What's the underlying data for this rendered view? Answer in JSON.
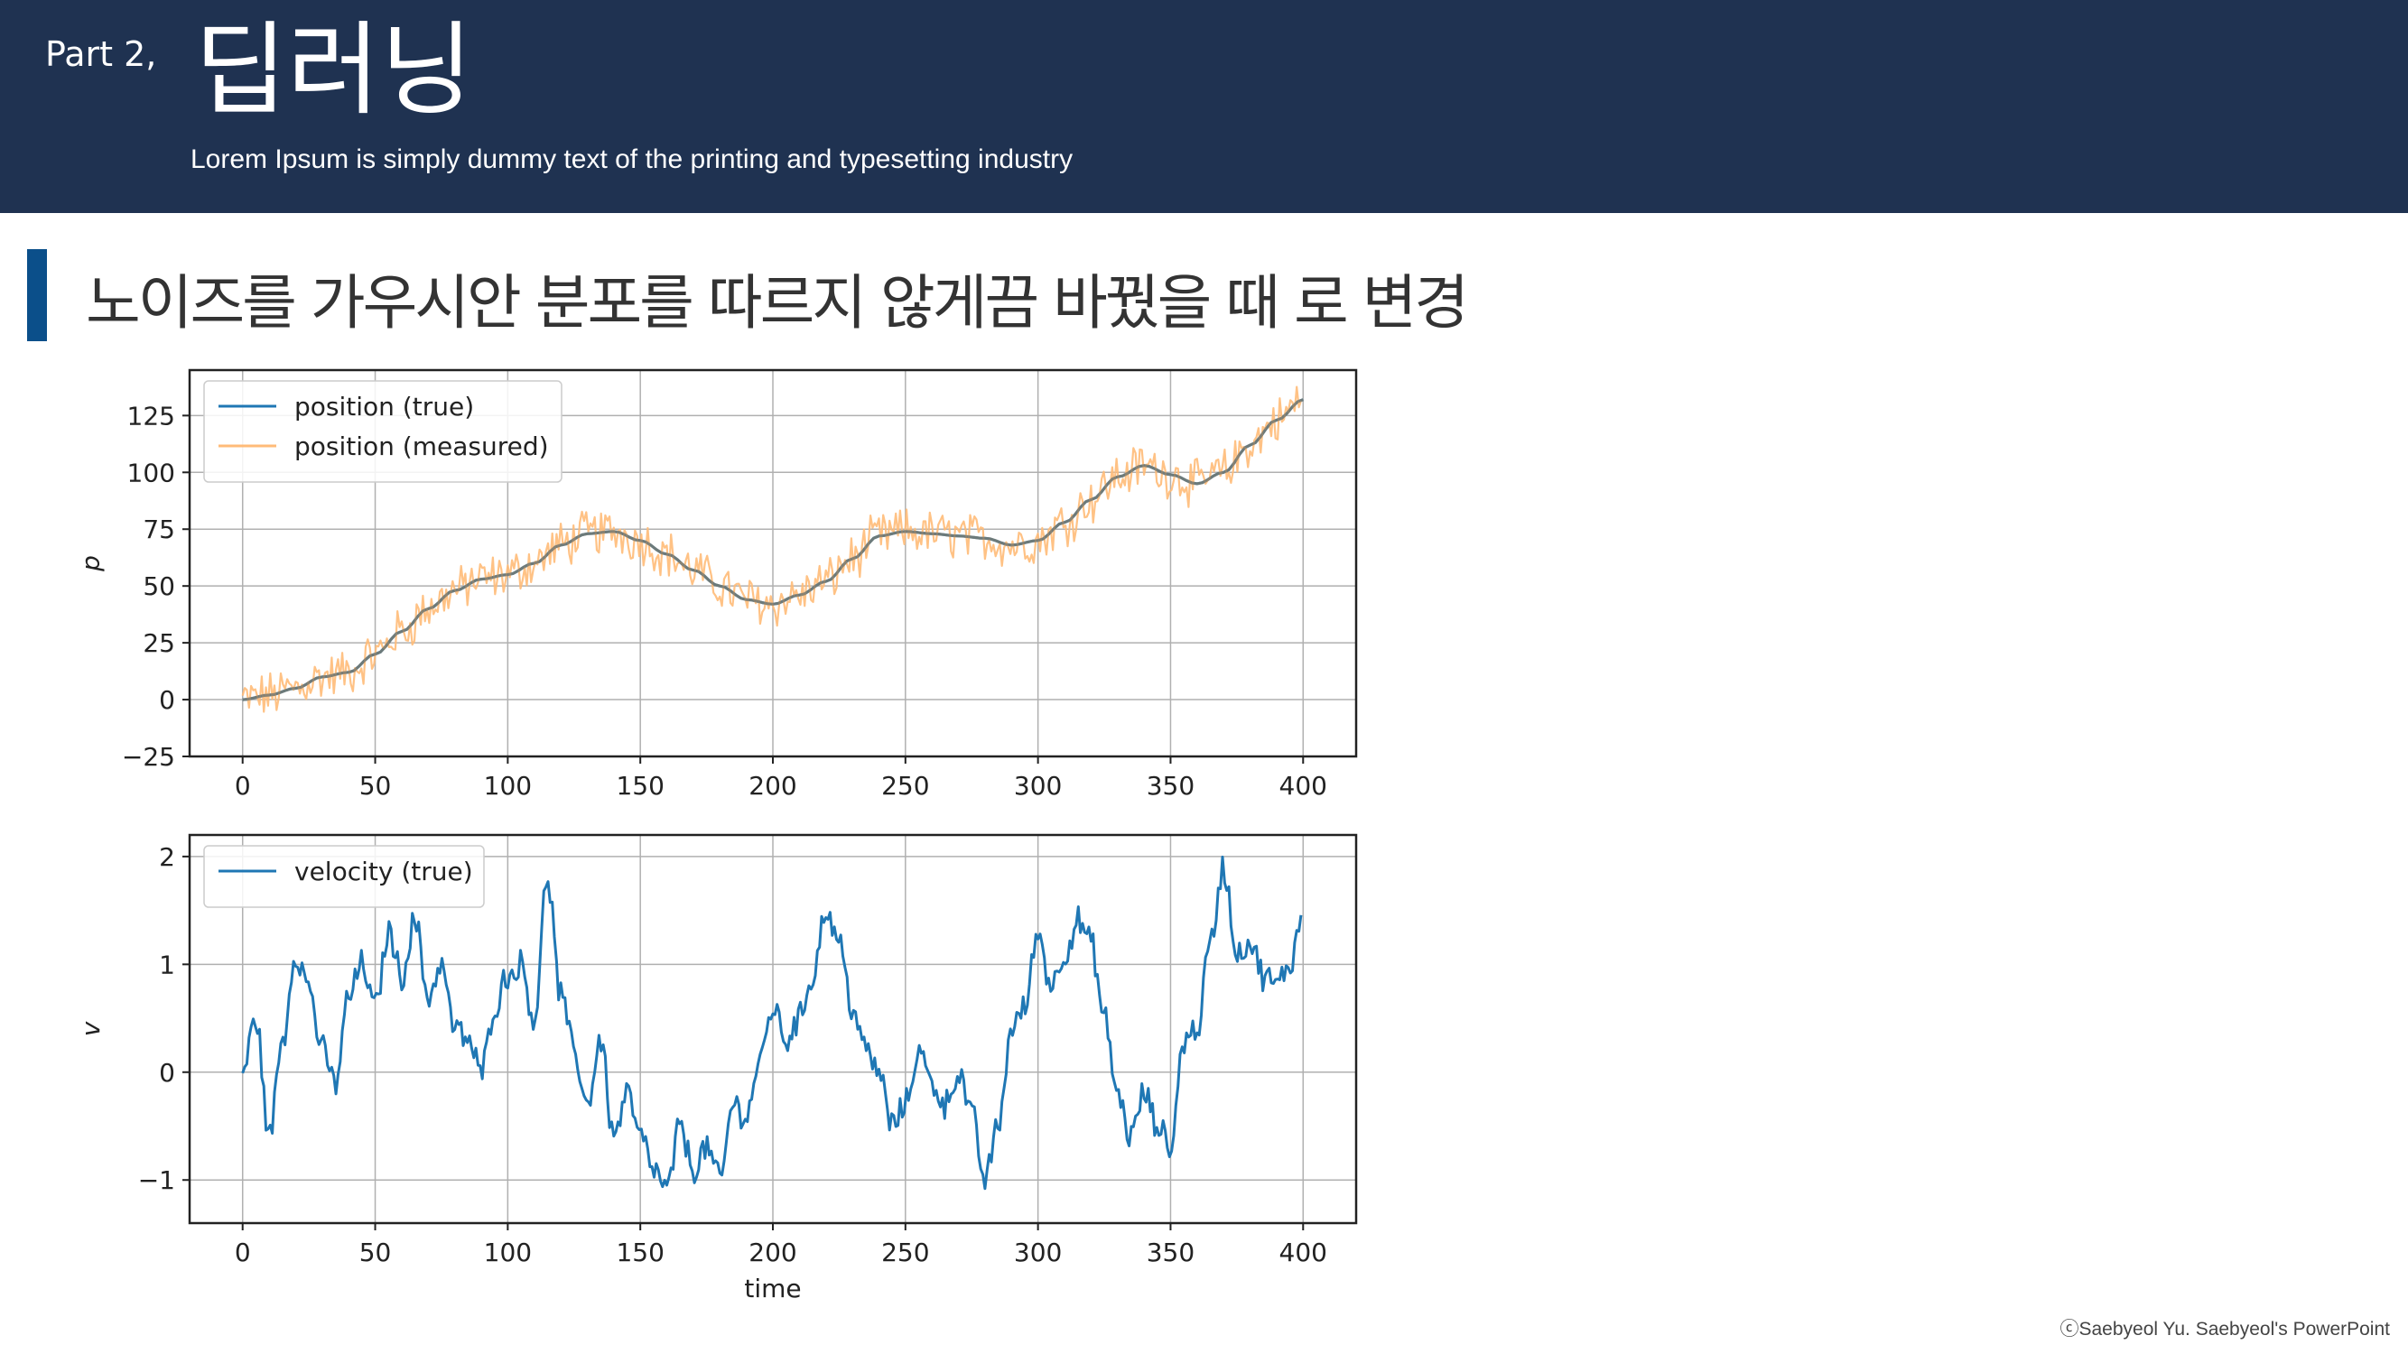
{
  "header": {
    "part_label": "Part 2,",
    "title": "딥러닝",
    "subtitle": "Lorem Ipsum is simply dummy text of the printing and typesetting industry"
  },
  "section": {
    "title": "노이즈를 가우시안 분포를 따르지 않게끔 바꿨을 때 로 변경"
  },
  "footer": {
    "credit": "ⓒSaebyeol Yu. Saebyeol's PowerPoint"
  },
  "colors": {
    "header_bg": "#1f3251",
    "accent_bar": "#0b4f8a",
    "series_true": "#1f77b4",
    "series_measured": "#ffbb78"
  },
  "chart_data": [
    {
      "type": "line",
      "ylabel": "p",
      "xlabel": "",
      "xlim": [
        -20,
        420
      ],
      "ylim": [
        -25,
        145
      ],
      "xticks": [
        0,
        50,
        100,
        150,
        200,
        250,
        300,
        350,
        400
      ],
      "yticks": [
        -25,
        0,
        25,
        50,
        75,
        100,
        125
      ],
      "ytick_labels": [
        "−25",
        "0",
        "25",
        "50",
        "75",
        "100",
        "125"
      ],
      "grid": true,
      "legend_position": "top-left",
      "series": [
        {
          "name": "position (true)",
          "color": "#1f77b4",
          "x": [
            0,
            10,
            20,
            30,
            40,
            50,
            60,
            70,
            80,
            90,
            100,
            110,
            120,
            130,
            140,
            150,
            160,
            170,
            180,
            190,
            200,
            210,
            220,
            230,
            240,
            250,
            260,
            270,
            280,
            290,
            300,
            310,
            320,
            330,
            340,
            350,
            360,
            370,
            380,
            390,
            400
          ],
          "values": [
            0,
            2,
            5,
            10,
            12,
            20,
            30,
            40,
            48,
            53,
            55,
            60,
            68,
            73,
            74,
            70,
            64,
            57,
            50,
            44,
            42,
            46,
            52,
            62,
            72,
            74,
            73,
            72,
            71,
            68,
            70,
            78,
            88,
            98,
            103,
            99,
            95,
            100,
            112,
            123,
            132
          ]
        },
        {
          "name": "position (measured)",
          "color": "#ffbb78",
          "noise_amplitude": 9,
          "x": [
            0,
            10,
            20,
            30,
            40,
            50,
            60,
            70,
            80,
            90,
            100,
            110,
            120,
            130,
            140,
            150,
            160,
            170,
            180,
            190,
            200,
            210,
            220,
            230,
            240,
            250,
            260,
            270,
            280,
            290,
            300,
            310,
            320,
            330,
            340,
            350,
            360,
            370,
            380,
            390,
            400
          ],
          "values": [
            0,
            2,
            5,
            10,
            12,
            20,
            30,
            40,
            48,
            53,
            55,
            60,
            68,
            73,
            74,
            70,
            64,
            57,
            50,
            44,
            42,
            46,
            52,
            62,
            72,
            74,
            73,
            72,
            71,
            68,
            70,
            78,
            88,
            98,
            103,
            99,
            95,
            100,
            112,
            123,
            132
          ]
        }
      ]
    },
    {
      "type": "line",
      "ylabel": "v",
      "xlabel": "time",
      "xlim": [
        -20,
        420
      ],
      "ylim": [
        -1.4,
        2.2
      ],
      "xticks": [
        0,
        50,
        100,
        150,
        200,
        250,
        300,
        350,
        400
      ],
      "yticks": [
        -1,
        0,
        1,
        2
      ],
      "ytick_labels": [
        "−1",
        "0",
        "1",
        "2"
      ],
      "grid": true,
      "legend_position": "top-left",
      "series": [
        {
          "name": "velocity (true)",
          "color": "#1f77b4",
          "noise_amplitude": 0.12,
          "x": [
            0,
            5,
            10,
            15,
            20,
            25,
            30,
            35,
            40,
            45,
            50,
            55,
            60,
            65,
            70,
            75,
            80,
            85,
            90,
            95,
            100,
            105,
            110,
            115,
            120,
            125,
            130,
            135,
            140,
            145,
            150,
            155,
            160,
            165,
            170,
            175,
            180,
            185,
            190,
            195,
            200,
            205,
            210,
            215,
            220,
            225,
            230,
            235,
            240,
            245,
            250,
            255,
            260,
            265,
            270,
            275,
            280,
            285,
            290,
            295,
            300,
            305,
            310,
            315,
            320,
            325,
            330,
            335,
            340,
            345,
            350,
            355,
            360,
            365,
            370,
            375,
            380,
            385,
            390,
            395,
            400
          ],
          "values": [
            0,
            0.5,
            -0.6,
            0.3,
            1.1,
            0.8,
            0.2,
            -0.1,
            0.7,
            1.0,
            0.6,
            1.3,
            0.9,
            1.4,
            0.7,
            1.0,
            0.4,
            0.3,
            0.0,
            0.6,
            0.9,
            1.0,
            0.5,
            1.8,
            0.7,
            0.2,
            -0.3,
            0.3,
            -0.6,
            -0.2,
            -0.6,
            -0.9,
            -1.1,
            -0.5,
            -0.9,
            -0.7,
            -1.0,
            -0.3,
            -0.4,
            0.1,
            0.6,
            0.3,
            0.5,
            0.9,
            1.5,
            1.2,
            0.6,
            0.2,
            0.0,
            -0.5,
            -0.3,
            0.2,
            -0.1,
            -0.3,
            0.0,
            -0.4,
            -1.0,
            -0.5,
            0.4,
            0.6,
            1.3,
            0.8,
            1.1,
            1.4,
            1.2,
            0.5,
            -0.2,
            -0.6,
            -0.2,
            -0.5,
            -0.7,
            0.3,
            0.4,
            1.2,
            1.9,
            1.1,
            1.2,
            0.9,
            0.8,
            1.0,
            1.5
          ]
        }
      ]
    }
  ]
}
